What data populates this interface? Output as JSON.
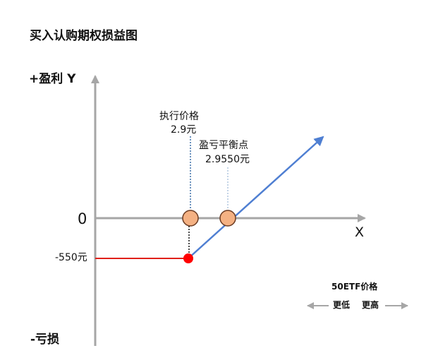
{
  "diagram": {
    "title": "买入认购期权损益图",
    "y_axis": {
      "positive_label": "+盈利 Y",
      "negative_label": "-亏损",
      "zero_label": "0"
    },
    "x_axis": {
      "label": "X"
    },
    "max_loss": {
      "label": "-550元"
    },
    "strike_price": {
      "label": "执行价格",
      "value": "2.9元"
    },
    "breakeven": {
      "label": "盈亏平衡点",
      "value": "2.9550元"
    },
    "legend": {
      "title": "50ETF价格",
      "lower": "更低",
      "higher": "更高"
    },
    "colors": {
      "axis": "#a6a6a6",
      "loss_line": "#e0201a",
      "profit_line": "#4f7fd2",
      "point_fill": "#f4b183",
      "point_stroke": "#6b3b22",
      "loss_point": "#ff0000",
      "dotted_guide": "#3a6fa8",
      "legend_arrow": "#a6a6a6"
    }
  }
}
